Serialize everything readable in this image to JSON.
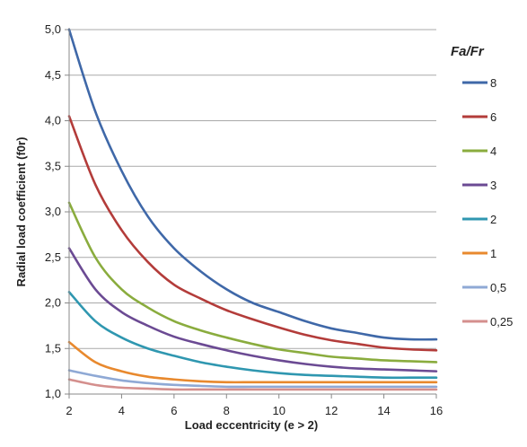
{
  "chart_data": {
    "type": "line",
    "title": "",
    "xlabel": "Load eccentricity (e > 2)",
    "ylabel": "Radial load coefficient (f0r)",
    "xlim": [
      2,
      16
    ],
    "ylim": [
      1.0,
      5.0
    ],
    "x_ticks": [
      2,
      4,
      6,
      8,
      10,
      12,
      14,
      16
    ],
    "y_ticks": [
      "1,0",
      "1,5",
      "2,0",
      "2,5",
      "3,0",
      "3,5",
      "4,0",
      "4,5",
      "5,0"
    ],
    "grid": "horizontal",
    "legend_position": "right",
    "legend_title": "Fa/Fr",
    "x": [
      2,
      3,
      4,
      5,
      6,
      7,
      8,
      9,
      10,
      11,
      12,
      13,
      14,
      15,
      16
    ],
    "series": [
      {
        "name": "8",
        "color": "#3f68a8",
        "values": [
          5.0,
          4.1,
          3.45,
          2.95,
          2.6,
          2.35,
          2.15,
          2.0,
          1.9,
          1.8,
          1.72,
          1.67,
          1.62,
          1.6,
          1.6
        ]
      },
      {
        "name": "6",
        "color": "#b33c3a",
        "values": [
          4.05,
          3.3,
          2.8,
          2.45,
          2.2,
          2.05,
          1.92,
          1.82,
          1.73,
          1.65,
          1.59,
          1.55,
          1.51,
          1.49,
          1.48
        ]
      },
      {
        "name": "4",
        "color": "#8aac3e",
        "values": [
          3.1,
          2.5,
          2.15,
          1.95,
          1.8,
          1.7,
          1.62,
          1.55,
          1.49,
          1.45,
          1.41,
          1.39,
          1.37,
          1.36,
          1.35
        ]
      },
      {
        "name": "3",
        "color": "#6b4a93",
        "values": [
          2.6,
          2.15,
          1.9,
          1.75,
          1.63,
          1.55,
          1.48,
          1.42,
          1.37,
          1.33,
          1.3,
          1.28,
          1.27,
          1.26,
          1.25
        ]
      },
      {
        "name": "2",
        "color": "#2f97b0",
        "values": [
          2.12,
          1.8,
          1.62,
          1.5,
          1.42,
          1.35,
          1.3,
          1.26,
          1.23,
          1.21,
          1.2,
          1.19,
          1.18,
          1.18,
          1.18
        ]
      },
      {
        "name": "1",
        "color": "#e8892e",
        "values": [
          1.57,
          1.35,
          1.25,
          1.19,
          1.16,
          1.14,
          1.13,
          1.13,
          1.13,
          1.13,
          1.13,
          1.13,
          1.13,
          1.13,
          1.13
        ]
      },
      {
        "name": "0,5",
        "color": "#8fa9d5",
        "values": [
          1.26,
          1.2,
          1.15,
          1.12,
          1.1,
          1.09,
          1.08,
          1.08,
          1.08,
          1.08,
          1.08,
          1.08,
          1.08,
          1.08,
          1.08
        ]
      },
      {
        "name": "0,25",
        "color": "#d48f8d",
        "values": [
          1.16,
          1.1,
          1.07,
          1.06,
          1.05,
          1.05,
          1.05,
          1.05,
          1.05,
          1.05,
          1.05,
          1.05,
          1.05,
          1.05,
          1.05
        ]
      }
    ]
  }
}
